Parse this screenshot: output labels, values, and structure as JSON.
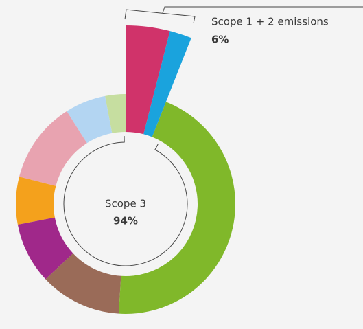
{
  "chart_data": {
    "type": "pie",
    "categories": [
      null,
      null,
      null,
      null,
      null,
      null,
      null,
      null,
      null
    ],
    "values": [
      4,
      2,
      45,
      12,
      9,
      7,
      12,
      6,
      3
    ],
    "colors": [
      "#d0336a",
      "#1aa3dd",
      "#80b82a",
      "#9a6b58",
      "#a0288a",
      "#f4a11c",
      "#e8a3b0",
      "#b3d5f2",
      "#c6dea0"
    ],
    "explode": [
      true,
      true,
      false,
      false,
      false,
      false,
      false,
      false,
      false
    ],
    "annotations": [
      {
        "label": "Scope 1 + 2 emissions",
        "value_label": "6%"
      },
      {
        "label": "Scope 3",
        "value_label": "94%"
      }
    ]
  }
}
